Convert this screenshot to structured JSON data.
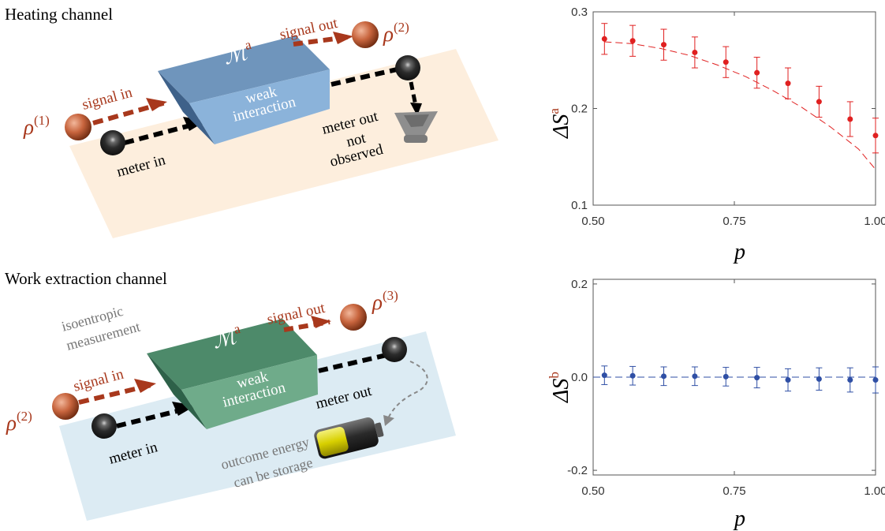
{
  "panels": {
    "heating": {
      "title": "Heating channel",
      "signal_in": "signal in",
      "signal_out": "signal out",
      "rho_in": "(1)",
      "rho_out": "(2)",
      "box_symbol": "a",
      "box_label_1": "weak",
      "box_label_2": "interaction",
      "meter_in": "meter in",
      "meter_out_1": "meter out",
      "meter_out_2": "not",
      "meter_out_3": "observed"
    },
    "work": {
      "title": "Work extraction channel",
      "signal_in": "signal in",
      "signal_out": "signal out",
      "rho_in": "(2)",
      "rho_out": "(3)",
      "box_symbol": "a",
      "box_label_1": "weak",
      "box_label_2": "interaction",
      "meter_in": "meter in",
      "meter_out": "meter out",
      "note_1": "isoentropic",
      "note_2": "measurement",
      "energy_1": "outcome energy",
      "energy_2": "can be storage"
    }
  },
  "colors": {
    "signal": "#a8381c",
    "heating_box": "#4d77a0",
    "work_box": "#3f7e61",
    "heating_bg": "#fdeedd",
    "work_bg": "#dcebf3",
    "chart_a": "#e02020",
    "chart_b": "#2f4fa5"
  },
  "chart_data": [
    {
      "type": "scatter",
      "ylabel_main": "ΔS",
      "ylabel_sup": "a",
      "xlabel": "p",
      "xlim": [
        0.5,
        1.0
      ],
      "ylim": [
        0.1,
        0.3
      ],
      "xticks": [
        "0.50",
        "0.75",
        "1.00"
      ],
      "yticks": [
        "0.1",
        "0.2",
        "0.3"
      ],
      "x": [
        0.52,
        0.57,
        0.625,
        0.68,
        0.735,
        0.79,
        0.845,
        0.9,
        0.955,
        1.0
      ],
      "y": [
        0.272,
        0.27,
        0.266,
        0.258,
        0.248,
        0.237,
        0.226,
        0.207,
        0.189,
        0.172
      ],
      "err": [
        0.016,
        0.016,
        0.016,
        0.016,
        0.016,
        0.016,
        0.016,
        0.016,
        0.018,
        0.018
      ],
      "fit_x": [
        0.52,
        0.57,
        0.62,
        0.67,
        0.72,
        0.77,
        0.82,
        0.87,
        0.92,
        0.97,
        1.0
      ],
      "fit_y": [
        0.269,
        0.267,
        0.262,
        0.255,
        0.245,
        0.233,
        0.218,
        0.201,
        0.181,
        0.158,
        0.137
      ],
      "grid": false
    },
    {
      "type": "scatter",
      "ylabel_main": "ΔS",
      "ylabel_sup": "b",
      "xlabel": "p",
      "xlim": [
        0.5,
        1.0
      ],
      "ylim": [
        -0.21,
        0.21
      ],
      "xticks": [
        "0.50",
        "0.75",
        "1.00"
      ],
      "yticks": [
        "0.2",
        "0.0",
        "-0.2"
      ],
      "x": [
        0.52,
        0.57,
        0.625,
        0.68,
        0.735,
        0.79,
        0.845,
        0.9,
        0.955,
        1.0
      ],
      "y": [
        0.004,
        0.003,
        0.002,
        0.002,
        0.001,
        -0.001,
        -0.006,
        -0.004,
        -0.006,
        -0.006
      ],
      "err": [
        0.02,
        0.02,
        0.02,
        0.02,
        0.02,
        0.022,
        0.024,
        0.024,
        0.026,
        0.028
      ],
      "fit_x": [
        0.5,
        1.0
      ],
      "fit_y": [
        0.0,
        0.0
      ],
      "grid": false
    }
  ]
}
